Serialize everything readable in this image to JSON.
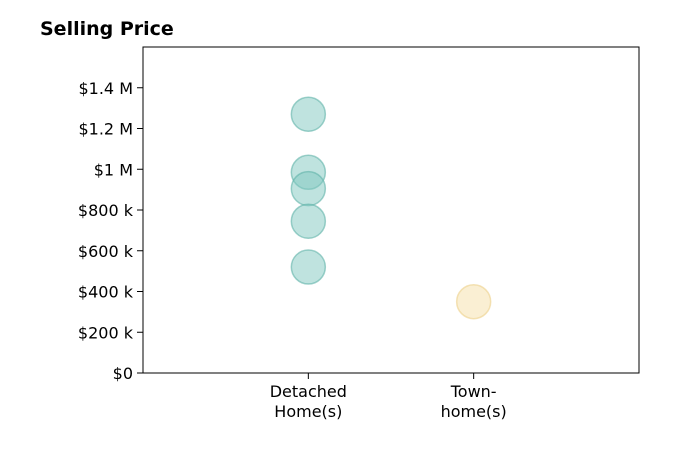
{
  "chart_data": {
    "type": "scatter",
    "title": "Selling Price",
    "xlabel": "",
    "ylabel": "",
    "categories": [
      [
        "Detached",
        "Home(s)"
      ],
      [
        "Town-",
        "home(s)"
      ]
    ],
    "xlim": [
      0,
      3
    ],
    "ylim": [
      0,
      1600000
    ],
    "yticks": [
      {
        "value": 0,
        "label": "$0"
      },
      {
        "value": 200000,
        "label": "$200 k"
      },
      {
        "value": 400000,
        "label": "$400 k"
      },
      {
        "value": 600000,
        "label": "$600 k"
      },
      {
        "value": 800000,
        "label": "$800 k"
      },
      {
        "value": 1000000,
        "label": "$1 M"
      },
      {
        "value": 1200000,
        "label": "$1.2 M"
      },
      {
        "value": 1400000,
        "label": "$1.4 M"
      }
    ],
    "grid": false,
    "series": [
      {
        "category": 0,
        "color": "#7fc8bf",
        "stroke": "#5fb3a9",
        "values": [
          1270000,
          985000,
          905000,
          745000,
          520000
        ]
      },
      {
        "category": 1,
        "color": "#f5dfa8",
        "stroke": "#ecd08a",
        "values": [
          350000
        ]
      }
    ]
  }
}
